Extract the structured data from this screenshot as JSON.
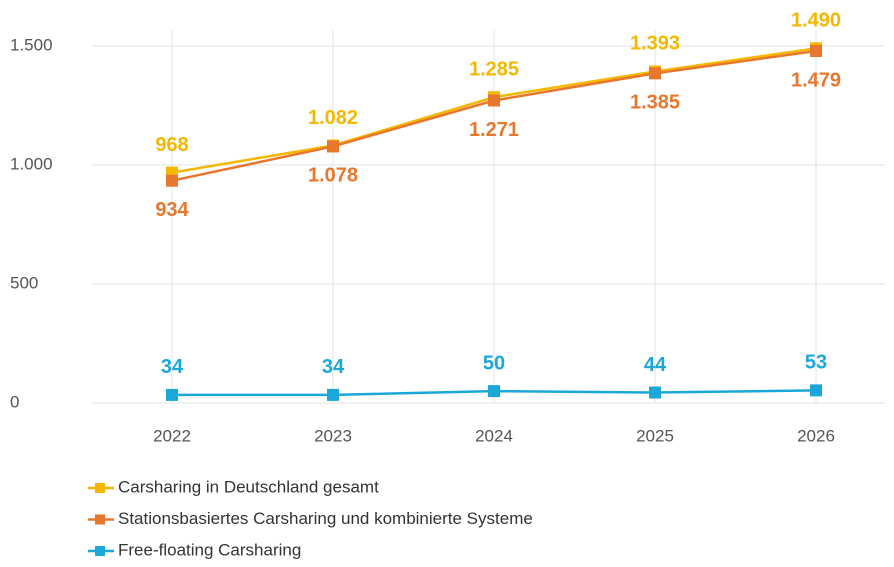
{
  "chart_data": {
    "type": "line",
    "categories": [
      "2022",
      "2023",
      "2024",
      "2025",
      "2026"
    ],
    "series": [
      {
        "name": "Carsharing in Deutschland gesamt",
        "color": "#f5b800",
        "values": [
          968,
          1082,
          1285,
          1393,
          1490
        ],
        "value_labels": [
          "968",
          "1.082",
          "1.285",
          "1.393",
          "1.490"
        ]
      },
      {
        "name": "Stationsbasiertes Carsharing und kombinierte Systeme",
        "color": "#e8772e",
        "values": [
          934,
          1078,
          1271,
          1385,
          1479
        ],
        "value_labels": [
          "934",
          "1.078",
          "1.271",
          "1.385",
          "1.479"
        ]
      },
      {
        "name": "Free-floating Carsharing",
        "color": "#1ba8d8",
        "values": [
          34,
          34,
          50,
          44,
          53
        ],
        "value_labels": [
          "34",
          "34",
          "50",
          "44",
          "53"
        ]
      }
    ],
    "ylim": [
      0,
      1500
    ],
    "yticks": [
      0,
      500,
      {
        "value": 1000,
        "label": "1.000"
      },
      {
        "value": 1500,
        "label": "1.500"
      }
    ],
    "grid": true,
    "legend": "bottom"
  }
}
